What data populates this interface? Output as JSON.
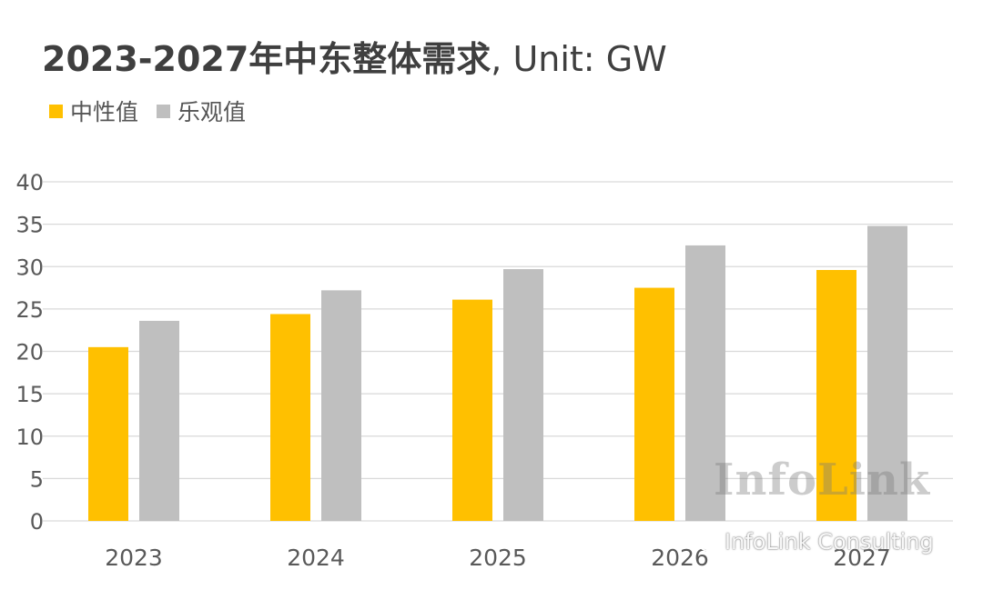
{
  "title": {
    "bold": "2023-2027年中东整体需求",
    "rest": ", Unit: GW"
  },
  "chart_data": {
    "type": "bar",
    "categories": [
      "2023",
      "2024",
      "2025",
      "2026",
      "2027"
    ],
    "series": [
      {
        "name": "中性值",
        "color": "#FFC000",
        "values": [
          20.5,
          24.4,
          26.1,
          27.5,
          29.6
        ]
      },
      {
        "name": "乐观值",
        "color": "#BFBFBF",
        "values": [
          23.6,
          27.2,
          29.7,
          32.5,
          34.8
        ]
      }
    ],
    "ylim": [
      0,
      40
    ],
    "yticks": [
      0,
      5,
      10,
      15,
      20,
      25,
      30,
      35,
      40
    ],
    "grid": true,
    "legend": "top-left"
  },
  "watermarks": {
    "brand": "InfoLink",
    "account": "InfoLink Consulting",
    "account_icon": "wechat-icon"
  }
}
